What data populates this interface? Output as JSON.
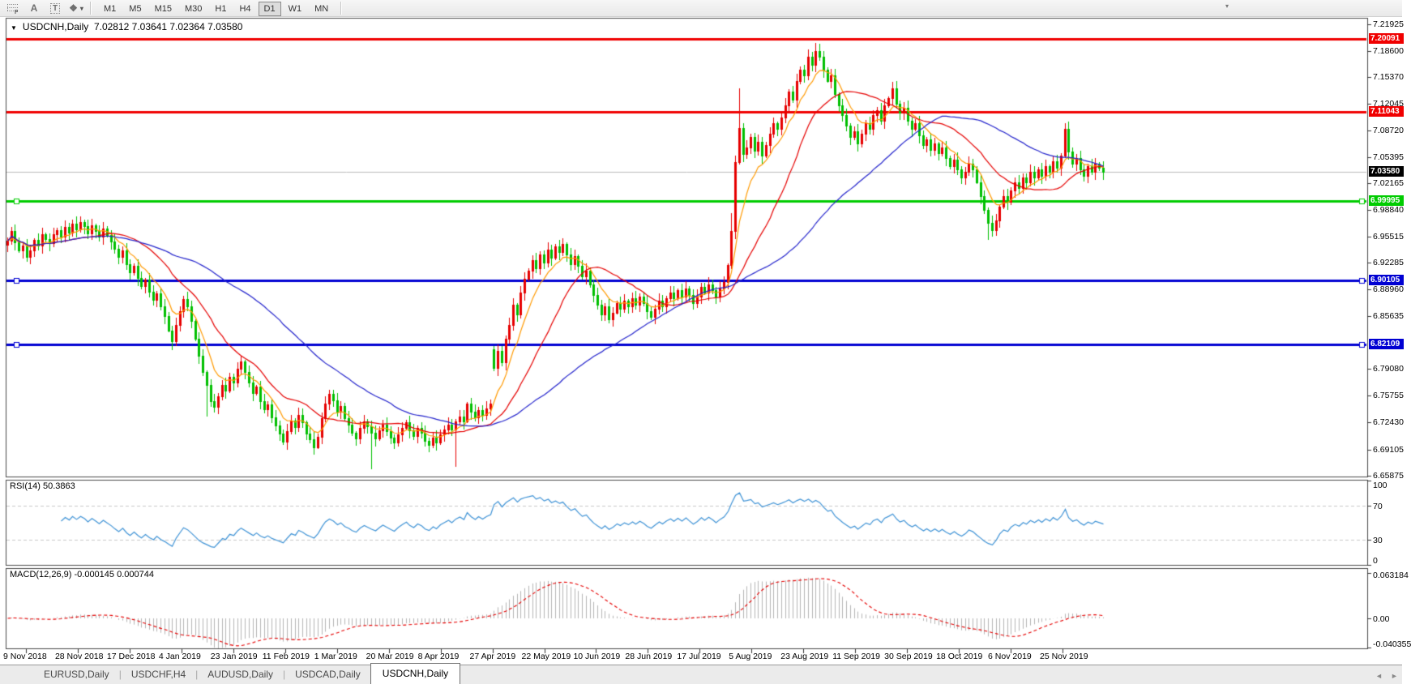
{
  "toolbar": {
    "tools": [
      {
        "name": "fibonacci",
        "glyph": "F"
      },
      {
        "name": "text",
        "glyph": "A"
      },
      {
        "name": "label",
        "glyph": "T"
      },
      {
        "name": "arrows",
        "glyph": "❖"
      }
    ],
    "timeframes": [
      "M1",
      "M5",
      "M15",
      "M30",
      "H1",
      "H4",
      "D1",
      "W1",
      "MN"
    ],
    "active_timeframe": "D1"
  },
  "chart": {
    "title": {
      "symbol": "USDCNH,Daily",
      "quote": "7.02812 7.03641 7.02364 7.03580",
      "open": "7.02812",
      "high": "7.03641",
      "low": "7.02364",
      "close": "7.03580"
    },
    "type": "candlestick",
    "price_axis": {
      "ticks": [
        "7.21925",
        "7.18600",
        "7.15370",
        "7.12045",
        "7.08720",
        "7.05395",
        "7.02165",
        "6.98840",
        "6.95515",
        "6.92285",
        "6.88960",
        "6.85635",
        "6.79080",
        "6.75755",
        "6.72430",
        "6.69105",
        "6.65875"
      ]
    },
    "hlines": [
      {
        "price": 7.20091,
        "label": "7.20091",
        "color": "#f00000",
        "handle": false
      },
      {
        "price": 7.11043,
        "label": "7.11043",
        "color": "#f00000",
        "handle": false
      },
      {
        "price": 6.99995,
        "label": "6.99995",
        "color": "#00cc00",
        "handle": true
      },
      {
        "price": 6.90105,
        "label": "6.90105",
        "color": "#0000d2",
        "handle": true
      },
      {
        "price": 6.82109,
        "label": "6.82109",
        "color": "#0000d2",
        "handle": true
      }
    ],
    "current_price": {
      "label": "7.03580",
      "price": 7.0358,
      "line_color": "#bdbdbd",
      "badge_bg": "#000000"
    },
    "candles": {
      "bull_color": "#e60000",
      "bear_color": "#00bf00",
      "first_open": 6.945,
      "closes": [
        6.95,
        6.962,
        6.948,
        6.938,
        6.944,
        6.93,
        6.938,
        6.951,
        6.944,
        6.958,
        6.952,
        6.947,
        6.958,
        6.963,
        6.955,
        6.967,
        6.96,
        6.972,
        6.964,
        6.974,
        6.968,
        6.959,
        6.97,
        6.962,
        6.955,
        6.965,
        6.957,
        6.949,
        6.94,
        6.93,
        6.938,
        6.921,
        6.911,
        6.919,
        6.904,
        6.894,
        6.902,
        6.887,
        6.877,
        6.885,
        6.869,
        6.857,
        6.839,
        6.825,
        6.846,
        6.863,
        6.878,
        6.869,
        6.851,
        6.829,
        6.807,
        6.787,
        6.771,
        6.751,
        6.744,
        6.757,
        6.771,
        6.764,
        6.781,
        6.774,
        6.791,
        6.8,
        6.787,
        6.774,
        6.761,
        6.769,
        6.751,
        6.741,
        6.747,
        6.731,
        6.721,
        6.711,
        6.701,
        6.714,
        6.727,
        6.719,
        6.734,
        6.725,
        6.711,
        6.704,
        6.694,
        6.707,
        6.73,
        6.748,
        6.76,
        6.752,
        6.738,
        6.745,
        6.73,
        6.722,
        6.712,
        6.705,
        6.718,
        6.726,
        6.72,
        6.712,
        6.705,
        6.715,
        6.722,
        6.714,
        6.706,
        6.7,
        6.71,
        6.718,
        6.725,
        6.715,
        6.708,
        6.718,
        6.712,
        6.702,
        6.697,
        6.706,
        6.7,
        6.71,
        6.716,
        6.722,
        6.716,
        6.726,
        6.732,
        6.726,
        6.748,
        6.738,
        6.731,
        6.74,
        6.734,
        6.742,
        6.748,
        6.792,
        6.813,
        6.799,
        6.829,
        6.846,
        6.871,
        6.859,
        6.886,
        6.903,
        6.913,
        6.926,
        6.916,
        6.933,
        6.923,
        6.939,
        6.929,
        6.943,
        6.936,
        6.946,
        6.933,
        6.921,
        6.931,
        6.919,
        6.906,
        6.913,
        6.896,
        6.883,
        6.871,
        6.859,
        6.869,
        6.853,
        6.861,
        6.873,
        6.866,
        6.876,
        6.869,
        6.879,
        6.871,
        6.881,
        6.873,
        6.863,
        6.856,
        6.866,
        6.876,
        6.869,
        6.879,
        6.886,
        6.879,
        6.889,
        6.881,
        6.891,
        6.883,
        6.873,
        6.881,
        6.893,
        6.886,
        6.896,
        6.889,
        6.881,
        6.891,
        6.899,
        6.92,
        6.962,
        7.048,
        7.09,
        7.058,
        7.066,
        7.079,
        7.062,
        7.073,
        7.056,
        7.069,
        7.083,
        7.096,
        7.089,
        7.103,
        7.119,
        7.136,
        7.126,
        7.149,
        7.163,
        7.156,
        7.179,
        7.169,
        7.186,
        7.179,
        7.163,
        7.149,
        7.156,
        7.133,
        7.119,
        7.106,
        7.093,
        7.079,
        7.086,
        7.071,
        7.083,
        7.096,
        7.089,
        7.106,
        7.113,
        7.099,
        7.119,
        7.128,
        7.14,
        7.121,
        7.109,
        7.116,
        7.099,
        7.089,
        7.096,
        7.081,
        7.069,
        7.076,
        7.063,
        7.071,
        7.059,
        7.066,
        7.053,
        7.043,
        7.051,
        7.039,
        7.029,
        7.036,
        7.046,
        7.039,
        7.023,
        7.006,
        6.989,
        6.973,
        6.963,
        6.976,
        6.993,
        7.006,
        6.999,
        7.013,
        7.023,
        7.016,
        7.029,
        7.023,
        7.036,
        7.029,
        7.039,
        7.031,
        7.043,
        7.036,
        7.049,
        7.041,
        7.056,
        7.089,
        7.061,
        7.046,
        7.053,
        7.039,
        7.031,
        7.043,
        7.036,
        7.046,
        7.041,
        7.0358
      ],
      "open_overrides": {
        "127": 6.815
      },
      "wick_overrides": {
        "43": [
          null,
          6.815
        ],
        "52": [
          null,
          6.733
        ],
        "80": [
          null,
          6.686
        ],
        "95": [
          null,
          6.667
        ],
        "117": [
          null,
          6.67
        ],
        "189": [
          6.985,
          null
        ],
        "191": [
          7.14,
          null
        ],
        "211": [
          7.196,
          null
        ],
        "256": [
          null,
          6.952
        ],
        "276": [
          7.096,
          null
        ]
      }
    },
    "moving_averages": [
      {
        "name": "ma-fast",
        "period": 8,
        "method": "ema",
        "color": "#ff9a00"
      },
      {
        "name": "ma-mid",
        "period": 21,
        "method": "sma",
        "color": "#e60000"
      },
      {
        "name": "ma-slow",
        "period": 55,
        "method": "sma",
        "color": "#2323cc"
      }
    ]
  },
  "rsi": {
    "label": "RSI(14)",
    "value": "50.3863",
    "period": 14,
    "levels": [
      "100",
      "70",
      "30",
      "0"
    ],
    "dashed_levels": [
      70,
      30
    ],
    "line_color": "#3f93d6"
  },
  "macd": {
    "label": "MACD(12,26,9)",
    "values": "-0.000145 0.000744",
    "fast": 12,
    "slow": 26,
    "signal": 9,
    "axis_labels": [
      {
        "text": "0.063184",
        "value": 0.063184
      },
      {
        "text": "0.00",
        "value": 0.0
      },
      {
        "text": "-0.040355",
        "value": -0.040355
      }
    ],
    "histogram_color": "#b5b5b5",
    "signal_color": "#e60000"
  },
  "date_axis": {
    "labels": [
      "9 Nov 2018",
      "28 Nov 2018",
      "17 Dec 2018",
      "4 Jan 2019",
      "23 Jan 2019",
      "11 Feb 2019",
      "1 Mar 2019",
      "20 Mar 2019",
      "8 Apr 2019",
      "27 Apr 2019",
      "22 May 2019",
      "10 Jun 2019",
      "28 Jun 2019",
      "17 Jul 2019",
      "5 Aug 2019",
      "23 Aug 2019",
      "11 Sep 2019",
      "30 Sep 2019",
      "18 Oct 2019",
      "6 Nov 2019",
      "25 Nov 2019"
    ]
  },
  "tabs": {
    "items": [
      "EURUSD,Daily",
      "USDCHF,H4",
      "AUDUSD,Daily",
      "USDCAD,Daily",
      "USDCNH,Daily"
    ],
    "active": "USDCNH,Daily"
  }
}
